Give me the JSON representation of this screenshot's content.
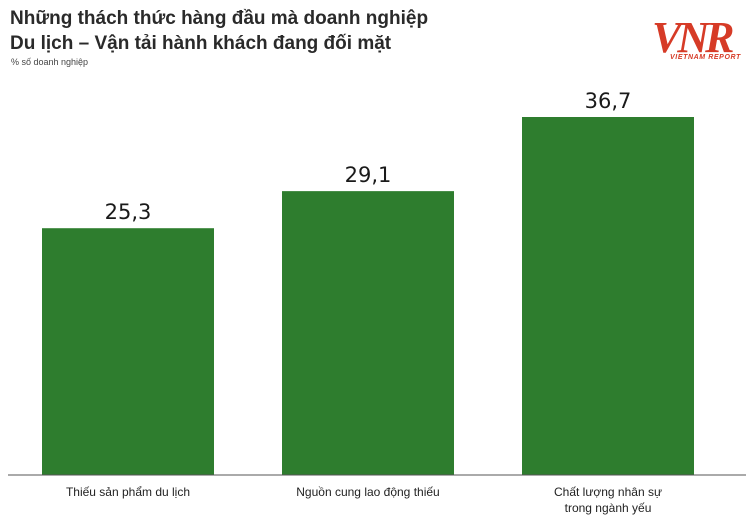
{
  "header": {
    "title_lines": [
      "Những thách thức hàng đầu mà doanh nghiệp",
      "Du lịch – Vận tải hành khách đang đối mặt"
    ],
    "unit_note": "% số doanh nghiệp"
  },
  "logo": {
    "mark_text": "VNR",
    "caption": "VIETNAM REPORT",
    "color": "#d63b27"
  },
  "chart_data": {
    "type": "bar",
    "title": "Những thách thức hàng đầu mà doanh nghiệp Du lịch – Vận tải hành khách đang đối mặt",
    "ylabel": "% số doanh nghiệp",
    "xlabel": "",
    "categories": [
      [
        "Thiếu sản phẩm du lịch"
      ],
      [
        "Nguồn cung lao động thiếu"
      ],
      [
        "Chất lượng nhân sự",
        "trong ngành yếu"
      ]
    ],
    "values": [
      25.3,
      29.1,
      36.7
    ],
    "value_labels": [
      "25,3",
      "29,1",
      "36,7"
    ],
    "ylim": [
      0,
      36.7
    ],
    "grid": false,
    "legend": "none",
    "bar_color": "#2e7d2e",
    "axis_color": "#555555"
  }
}
